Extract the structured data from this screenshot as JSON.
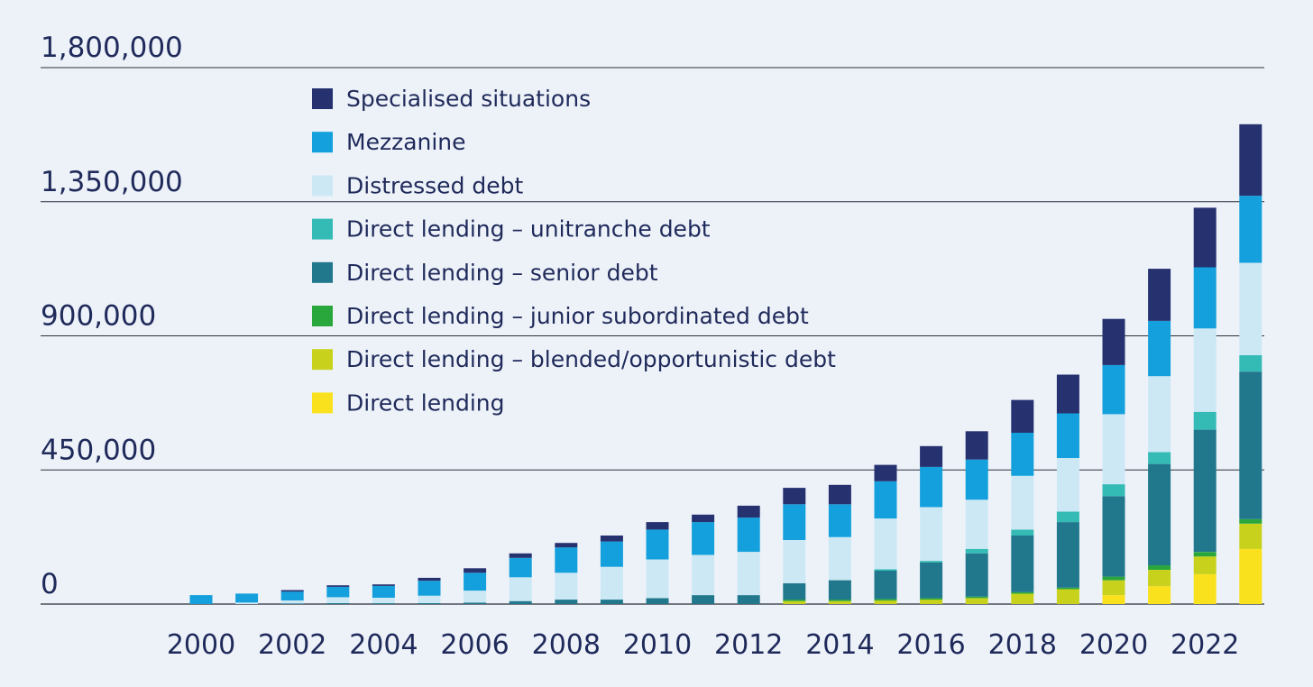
{
  "chart_data": {
    "type": "bar",
    "stacked": true,
    "title": "",
    "xlabel": "",
    "ylabel": "",
    "ylim": [
      0,
      1800000
    ],
    "yticks": [
      0,
      450000,
      900000,
      1350000,
      1800000
    ],
    "ytick_labels": [
      "0",
      "450,000",
      "900,000",
      "1,350,000",
      "1,800,000"
    ],
    "xtick_labels": [
      "2000",
      "2002",
      "2004",
      "2006",
      "2008",
      "2010",
      "2012",
      "2014",
      "2016",
      "2018",
      "2020",
      "2022"
    ],
    "grid": true,
    "legend_position": "top-left",
    "categories": [
      "2000",
      "2001",
      "2002",
      "2003",
      "2004",
      "2005",
      "2006",
      "2007",
      "2008",
      "2009",
      "2010",
      "2011",
      "2012",
      "2013",
      "2014",
      "2015",
      "2016",
      "2017",
      "2018",
      "2019",
      "2020",
      "2021",
      "2022",
      "2023"
    ],
    "series": [
      {
        "name": "Direct lending",
        "color": "#f9e21d",
        "values": [
          0,
          0,
          0,
          0,
          0,
          0,
          0,
          0,
          0,
          0,
          0,
          0,
          0,
          0,
          0,
          0,
          0,
          0,
          0,
          0,
          30000,
          60000,
          100000,
          185000
        ]
      },
      {
        "name": "Direct lending – blended/opportunistic debt",
        "color": "#c8d21d",
        "values": [
          0,
          0,
          0,
          0,
          0,
          0,
          0,
          0,
          0,
          0,
          0,
          0,
          0,
          10000,
          10000,
          12000,
          15000,
          20000,
          35000,
          50000,
          50000,
          55000,
          60000,
          85000
        ]
      },
      {
        "name": "Direct lending – junior subordinated debt",
        "color": "#2aa73c",
        "values": [
          0,
          0,
          0,
          0,
          0,
          0,
          0,
          0,
          0,
          0,
          0,
          0,
          0,
          5000,
          5000,
          5000,
          5000,
          5000,
          5000,
          5000,
          12000,
          15000,
          15000,
          15000
        ]
      },
      {
        "name": "Direct lending – senior debt",
        "color": "#21788c",
        "values": [
          0,
          0,
          2000,
          3000,
          3000,
          3000,
          5000,
          10000,
          15000,
          15000,
          20000,
          30000,
          30000,
          55000,
          65000,
          95000,
          120000,
          145000,
          190000,
          220000,
          270000,
          340000,
          410000,
          495000
        ]
      },
      {
        "name": "Direct lending – unitranche debt",
        "color": "#35bbb6",
        "values": [
          0,
          0,
          0,
          0,
          0,
          0,
          0,
          0,
          0,
          0,
          0,
          0,
          0,
          0,
          0,
          5000,
          5000,
          15000,
          20000,
          35000,
          40000,
          40000,
          60000,
          55000
        ]
      },
      {
        "name": "Distressed debt",
        "color": "#cde8f5",
        "values": [
          0,
          5000,
          10000,
          20000,
          18000,
          25000,
          40000,
          80000,
          90000,
          110000,
          130000,
          135000,
          145000,
          145000,
          145000,
          170000,
          180000,
          165000,
          180000,
          180000,
          235000,
          255000,
          280000,
          310000
        ]
      },
      {
        "name": "Mezzanine",
        "color": "#14a0dc",
        "values": [
          30000,
          30000,
          30000,
          35000,
          40000,
          50000,
          60000,
          65000,
          85000,
          85000,
          100000,
          110000,
          115000,
          120000,
          110000,
          125000,
          135000,
          135000,
          145000,
          150000,
          165000,
          185000,
          205000,
          225000
        ]
      },
      {
        "name": "Specialised situations",
        "color": "#263170",
        "values": [
          0,
          0,
          5000,
          5000,
          5000,
          10000,
          15000,
          15000,
          15000,
          20000,
          25000,
          25000,
          40000,
          55000,
          65000,
          55000,
          70000,
          95000,
          110000,
          130000,
          155000,
          175000,
          200000,
          240000
        ]
      }
    ]
  }
}
